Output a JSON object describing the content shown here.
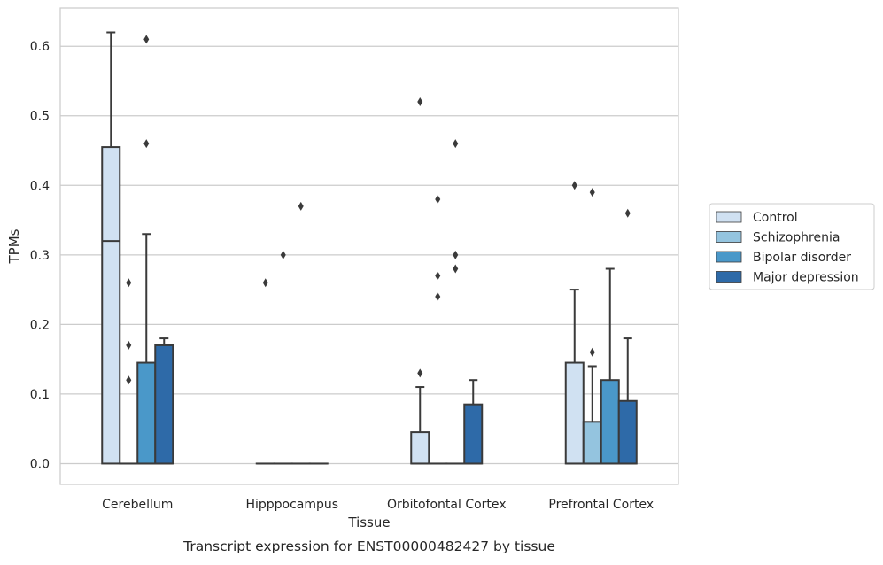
{
  "caption": "Transcript expression for ENST00000482427 by tissue",
  "colors": {
    "Control": "#d0e1f2",
    "Schizophrenia": "#94c4df",
    "Bipolar disorder": "#4a98c9",
    "Major depression": "#2e6aa8",
    "edge": "#3a3a3a",
    "grid": "#cccccc",
    "frame": "#cccccc"
  },
  "chart_data": {
    "type": "boxplot",
    "title": "",
    "xlabel": "Tissue",
    "ylabel": "TPMs",
    "categories": [
      "Cerebellum",
      "Hipppocampus",
      "Orbitofontal Cortex",
      "Prefrontal Cortex"
    ],
    "ylim": [
      -0.03,
      0.655
    ],
    "yticks": [
      0.0,
      0.1,
      0.2,
      0.3,
      0.4,
      0.5,
      0.6
    ],
    "ytick_labels": [
      "0.0",
      "0.1",
      "0.2",
      "0.3",
      "0.4",
      "0.5",
      "0.6"
    ],
    "grid": "horizontal",
    "legend_position": "right",
    "series": [
      {
        "name": "Control",
        "boxes": [
          {
            "q1": 0.0,
            "median": 0.32,
            "q3": 0.455,
            "whislo": 0.0,
            "whishi": 0.62,
            "fliers": []
          },
          {
            "q1": 0.0,
            "median": 0.0,
            "q3": 0.0,
            "whislo": 0.0,
            "whishi": 0.0,
            "fliers": [
              0.26
            ]
          },
          {
            "q1": 0.0,
            "median": 0.0,
            "q3": 0.045,
            "whislo": 0.0,
            "whishi": 0.11,
            "fliers": [
              0.13,
              0.52
            ]
          },
          {
            "q1": 0.0,
            "median": 0.0,
            "q3": 0.145,
            "whislo": 0.0,
            "whishi": 0.25,
            "fliers": [
              0.4
            ]
          }
        ]
      },
      {
        "name": "Schizophrenia",
        "boxes": [
          {
            "q1": 0.0,
            "median": 0.0,
            "q3": 0.0,
            "whislo": 0.0,
            "whishi": 0.0,
            "fliers": [
              0.12,
              0.17,
              0.26
            ]
          },
          {
            "q1": 0.0,
            "median": 0.0,
            "q3": 0.0,
            "whislo": 0.0,
            "whishi": 0.0,
            "fliers": [
              0.3
            ]
          },
          {
            "q1": 0.0,
            "median": 0.0,
            "q3": 0.0,
            "whislo": 0.0,
            "whishi": 0.0,
            "fliers": [
              0.24,
              0.27,
              0.38
            ]
          },
          {
            "q1": 0.0,
            "median": 0.0,
            "q3": 0.06,
            "whislo": 0.0,
            "whishi": 0.14,
            "fliers": [
              0.16,
              0.39
            ]
          }
        ]
      },
      {
        "name": "Bipolar disorder",
        "boxes": [
          {
            "q1": 0.0,
            "median": 0.0,
            "q3": 0.145,
            "whislo": 0.0,
            "whishi": 0.33,
            "fliers": [
              0.46,
              0.61
            ]
          },
          {
            "q1": 0.0,
            "median": 0.0,
            "q3": 0.0,
            "whislo": 0.0,
            "whishi": 0.0,
            "fliers": [
              0.37
            ]
          },
          {
            "q1": 0.0,
            "median": 0.0,
            "q3": 0.0,
            "whislo": 0.0,
            "whishi": 0.0,
            "fliers": [
              0.28,
              0.3,
              0.46
            ]
          },
          {
            "q1": 0.0,
            "median": 0.0,
            "q3": 0.12,
            "whislo": 0.0,
            "whishi": 0.28,
            "fliers": []
          }
        ]
      },
      {
        "name": "Major depression",
        "boxes": [
          {
            "q1": 0.0,
            "median": 0.0,
            "q3": 0.17,
            "whislo": 0.0,
            "whishi": 0.18,
            "fliers": []
          },
          {
            "q1": 0.0,
            "median": 0.0,
            "q3": 0.0,
            "whislo": 0.0,
            "whishi": 0.0,
            "fliers": []
          },
          {
            "q1": 0.0,
            "median": 0.0,
            "q3": 0.085,
            "whislo": 0.0,
            "whishi": 0.12,
            "fliers": []
          },
          {
            "q1": 0.0,
            "median": 0.0,
            "q3": 0.09,
            "whislo": 0.0,
            "whishi": 0.18,
            "fliers": [
              0.36
            ]
          }
        ]
      }
    ]
  }
}
